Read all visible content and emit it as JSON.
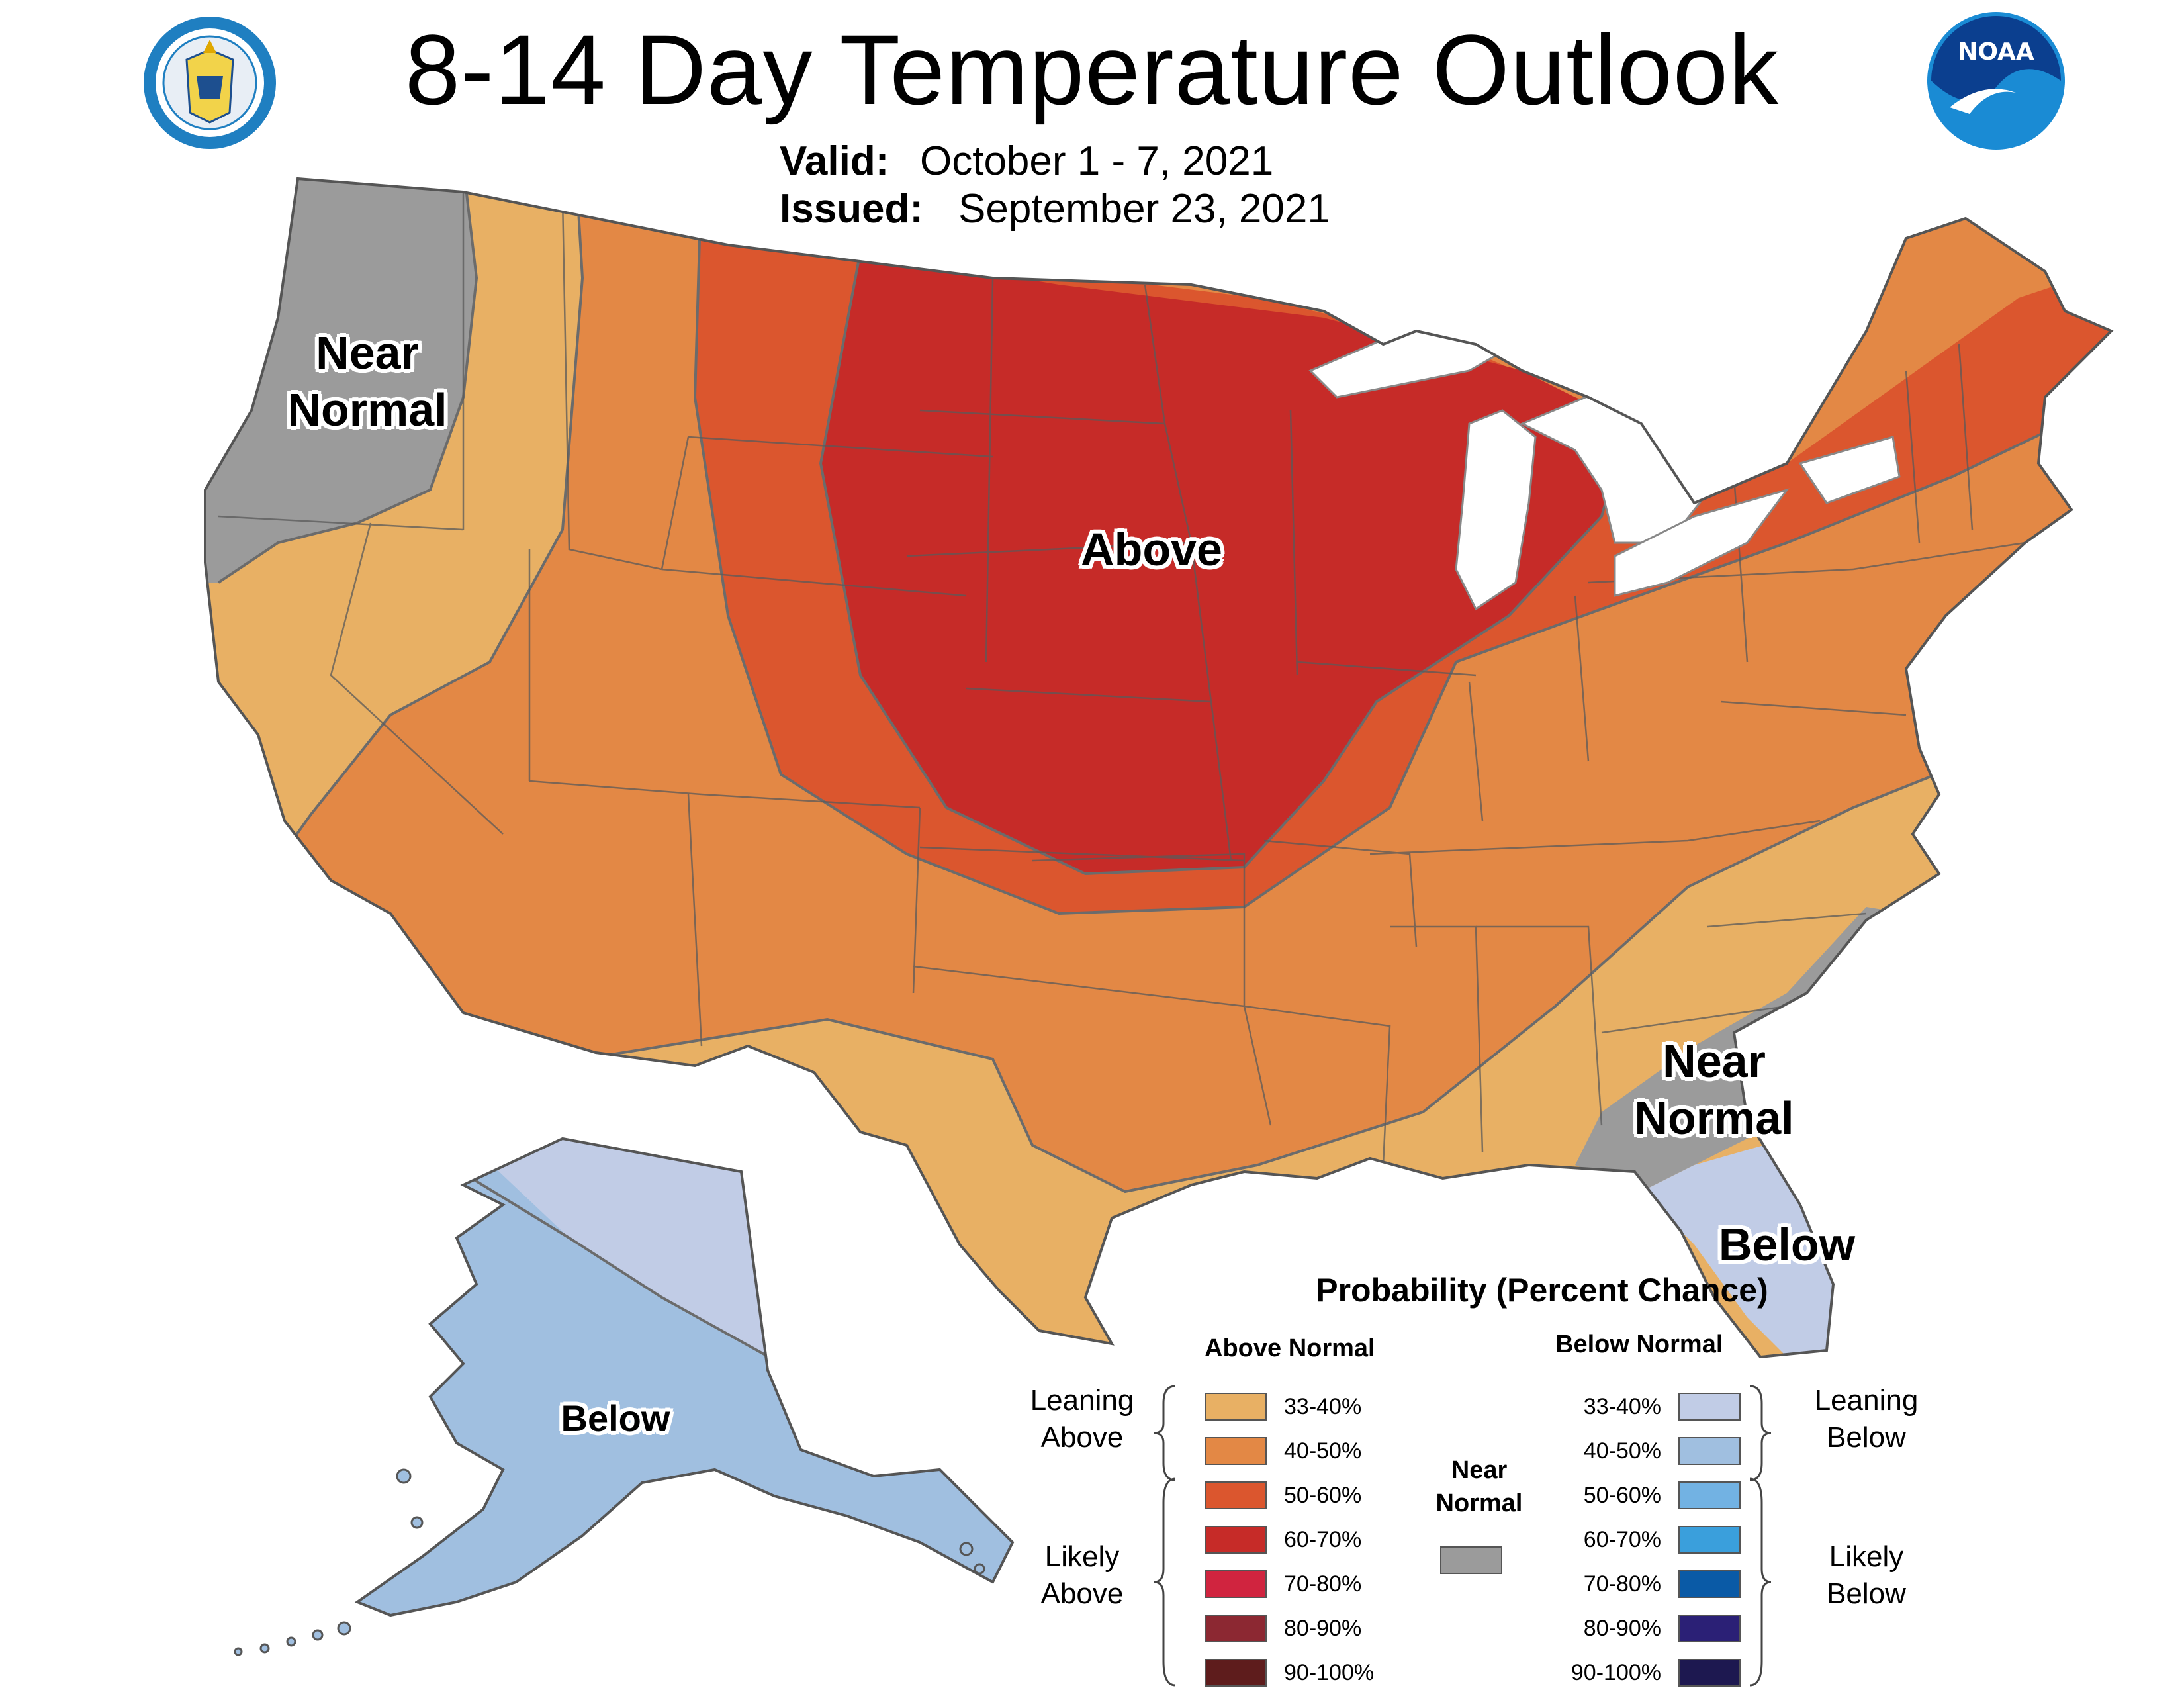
{
  "header": {
    "title": "8-14 Day Temperature Outlook",
    "valid_label": "Valid:",
    "valid_value": "October 1 - 7, 2021",
    "issued_label": "Issued:",
    "issued_value": "September 23, 2021",
    "left_logo_text": "DEPARTMENT OF COMMERCE · UNITED STATES OF AMERICA",
    "right_logo_text": "NOAA"
  },
  "map_labels": {
    "near_normal_west_line1": "Near",
    "near_normal_west_line2": "Normal",
    "above": "Above",
    "near_normal_se_line1": "Near",
    "near_normal_se_line2": "Normal",
    "below_florida": "Below",
    "below_alaska": "Below"
  },
  "colors": {
    "above_33_40": "#E8B064",
    "above_40_50": "#E38845",
    "above_50_60": "#DB562E",
    "above_60_70": "#C62B28",
    "above_70_80": "#D0243F",
    "above_80_90": "#8C2832",
    "above_90_100": "#5E1C1C",
    "near_normal": "#9B9B9B",
    "below_33_40": "#C1CCE6",
    "below_40_50": "#A0BFE0",
    "below_50_60": "#72B2E3",
    "below_60_70": "#3A9FDC",
    "below_70_80": "#0A5AA6",
    "below_80_90": "#2B2076",
    "below_90_100": "#1D1850",
    "lakes": "#ffffff"
  },
  "legend": {
    "title": "Probability (Percent Chance)",
    "above_heading": "Above Normal",
    "below_heading": "Below Normal",
    "near_heading_line1": "Near",
    "near_heading_line2": "Normal",
    "leaning_above_line1": "Leaning",
    "leaning_above_line2": "Above",
    "likely_above_line1": "Likely",
    "likely_above_line2": "Above",
    "leaning_below_line1": "Leaning",
    "leaning_below_line2": "Below",
    "likely_below_line1": "Likely",
    "likely_below_line2": "Below",
    "above_items": [
      "33-40%",
      "40-50%",
      "50-60%",
      "60-70%",
      "70-80%",
      "80-90%",
      "90-100%"
    ],
    "below_items": [
      "33-40%",
      "40-50%",
      "50-60%",
      "60-70%",
      "70-80%",
      "80-90%",
      "90-100%"
    ]
  }
}
